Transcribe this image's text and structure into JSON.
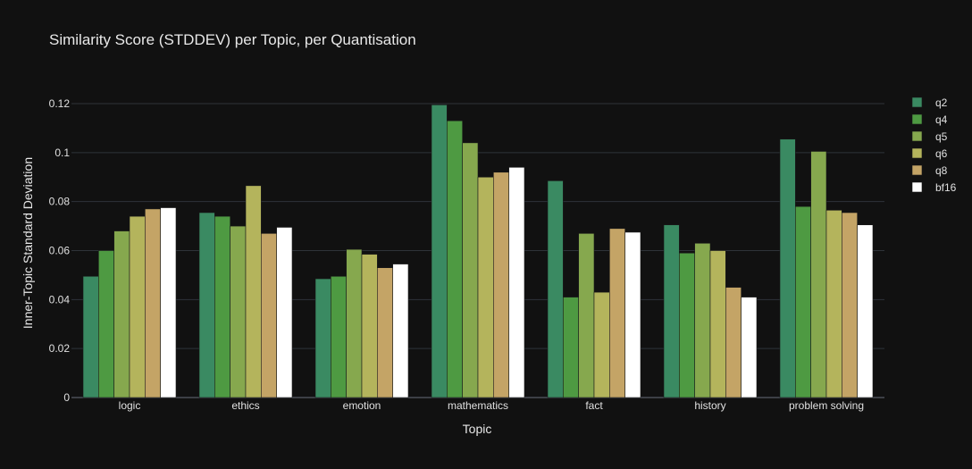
{
  "chart_data": {
    "type": "bar",
    "title": "Similarity Score (STDDEV) per Topic, per Quantisation",
    "xlabel": "Topic",
    "ylabel": "Inner-Topic Standard Deviation",
    "ylim": [
      0,
      0.12
    ],
    "yticks": [
      "0",
      "0.02",
      "0.04",
      "0.06",
      "0.08",
      "0.1",
      "0.12"
    ],
    "categories": [
      "logic",
      "ethics",
      "emotion",
      "mathematics",
      "fact",
      "history",
      "problem solving"
    ],
    "grid": true,
    "legend": "right",
    "series": [
      {
        "name": "q2",
        "color": "#3a8a62",
        "values": [
          0.0495,
          0.0755,
          0.0485,
          0.1195,
          0.0885,
          0.0705,
          0.1055
        ]
      },
      {
        "name": "q4",
        "color": "#4e9a42",
        "values": [
          0.06,
          0.074,
          0.0495,
          0.113,
          0.041,
          0.059,
          0.078
        ]
      },
      {
        "name": "q5",
        "color": "#86a84e",
        "values": [
          0.068,
          0.07,
          0.0605,
          0.104,
          0.067,
          0.063,
          0.1005
        ]
      },
      {
        "name": "q6",
        "color": "#b4b45c",
        "values": [
          0.074,
          0.0865,
          0.0585,
          0.09,
          0.043,
          0.06,
          0.0765
        ]
      },
      {
        "name": "q8",
        "color": "#c4a466",
        "values": [
          0.077,
          0.067,
          0.053,
          0.092,
          0.069,
          0.045,
          0.0755
        ]
      },
      {
        "name": "bf16",
        "color": "#ffffff",
        "values": [
          0.0775,
          0.0695,
          0.0545,
          0.094,
          0.0675,
          0.041,
          0.0705
        ]
      }
    ]
  }
}
